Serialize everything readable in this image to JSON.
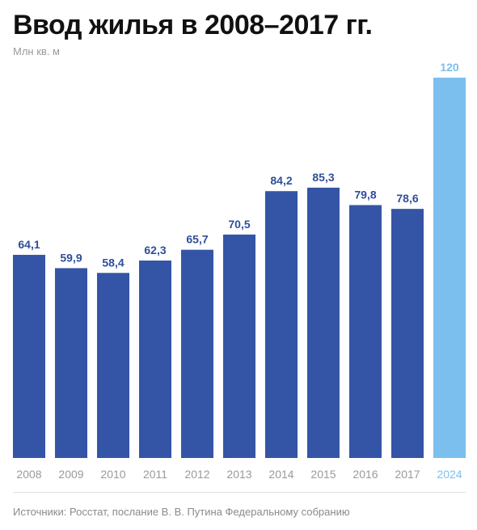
{
  "title": "Ввод жилья в 2008–2017 гг.",
  "unit_label": "Млн кв. м",
  "source": "Источники: Росстат, послание В. В. Путина Федеральному собранию",
  "colors": {
    "bar": "#3455a6",
    "bar_value_label": "#2f4e9b",
    "highlight_bar": "#7bbfee",
    "highlight_label": "#7bbfee",
    "category_label": "#9a9a9a"
  },
  "chart_data": {
    "type": "bar",
    "categories": [
      "2008",
      "2009",
      "2010",
      "2011",
      "2012",
      "2013",
      "2014",
      "2015",
      "2016",
      "2017",
      "2024"
    ],
    "values": [
      64.1,
      59.9,
      58.4,
      62.3,
      65.7,
      70.5,
      84.2,
      85.3,
      79.8,
      78.6,
      120
    ],
    "value_labels": [
      "64,1",
      "59,9",
      "58,4",
      "62,3",
      "65,7",
      "70,5",
      "84,2",
      "85,3",
      "79,8",
      "78,6",
      "120"
    ],
    "highlight_categories": [
      "2024"
    ],
    "ylim": [
      0,
      120
    ],
    "grid": false,
    "legend": false
  }
}
